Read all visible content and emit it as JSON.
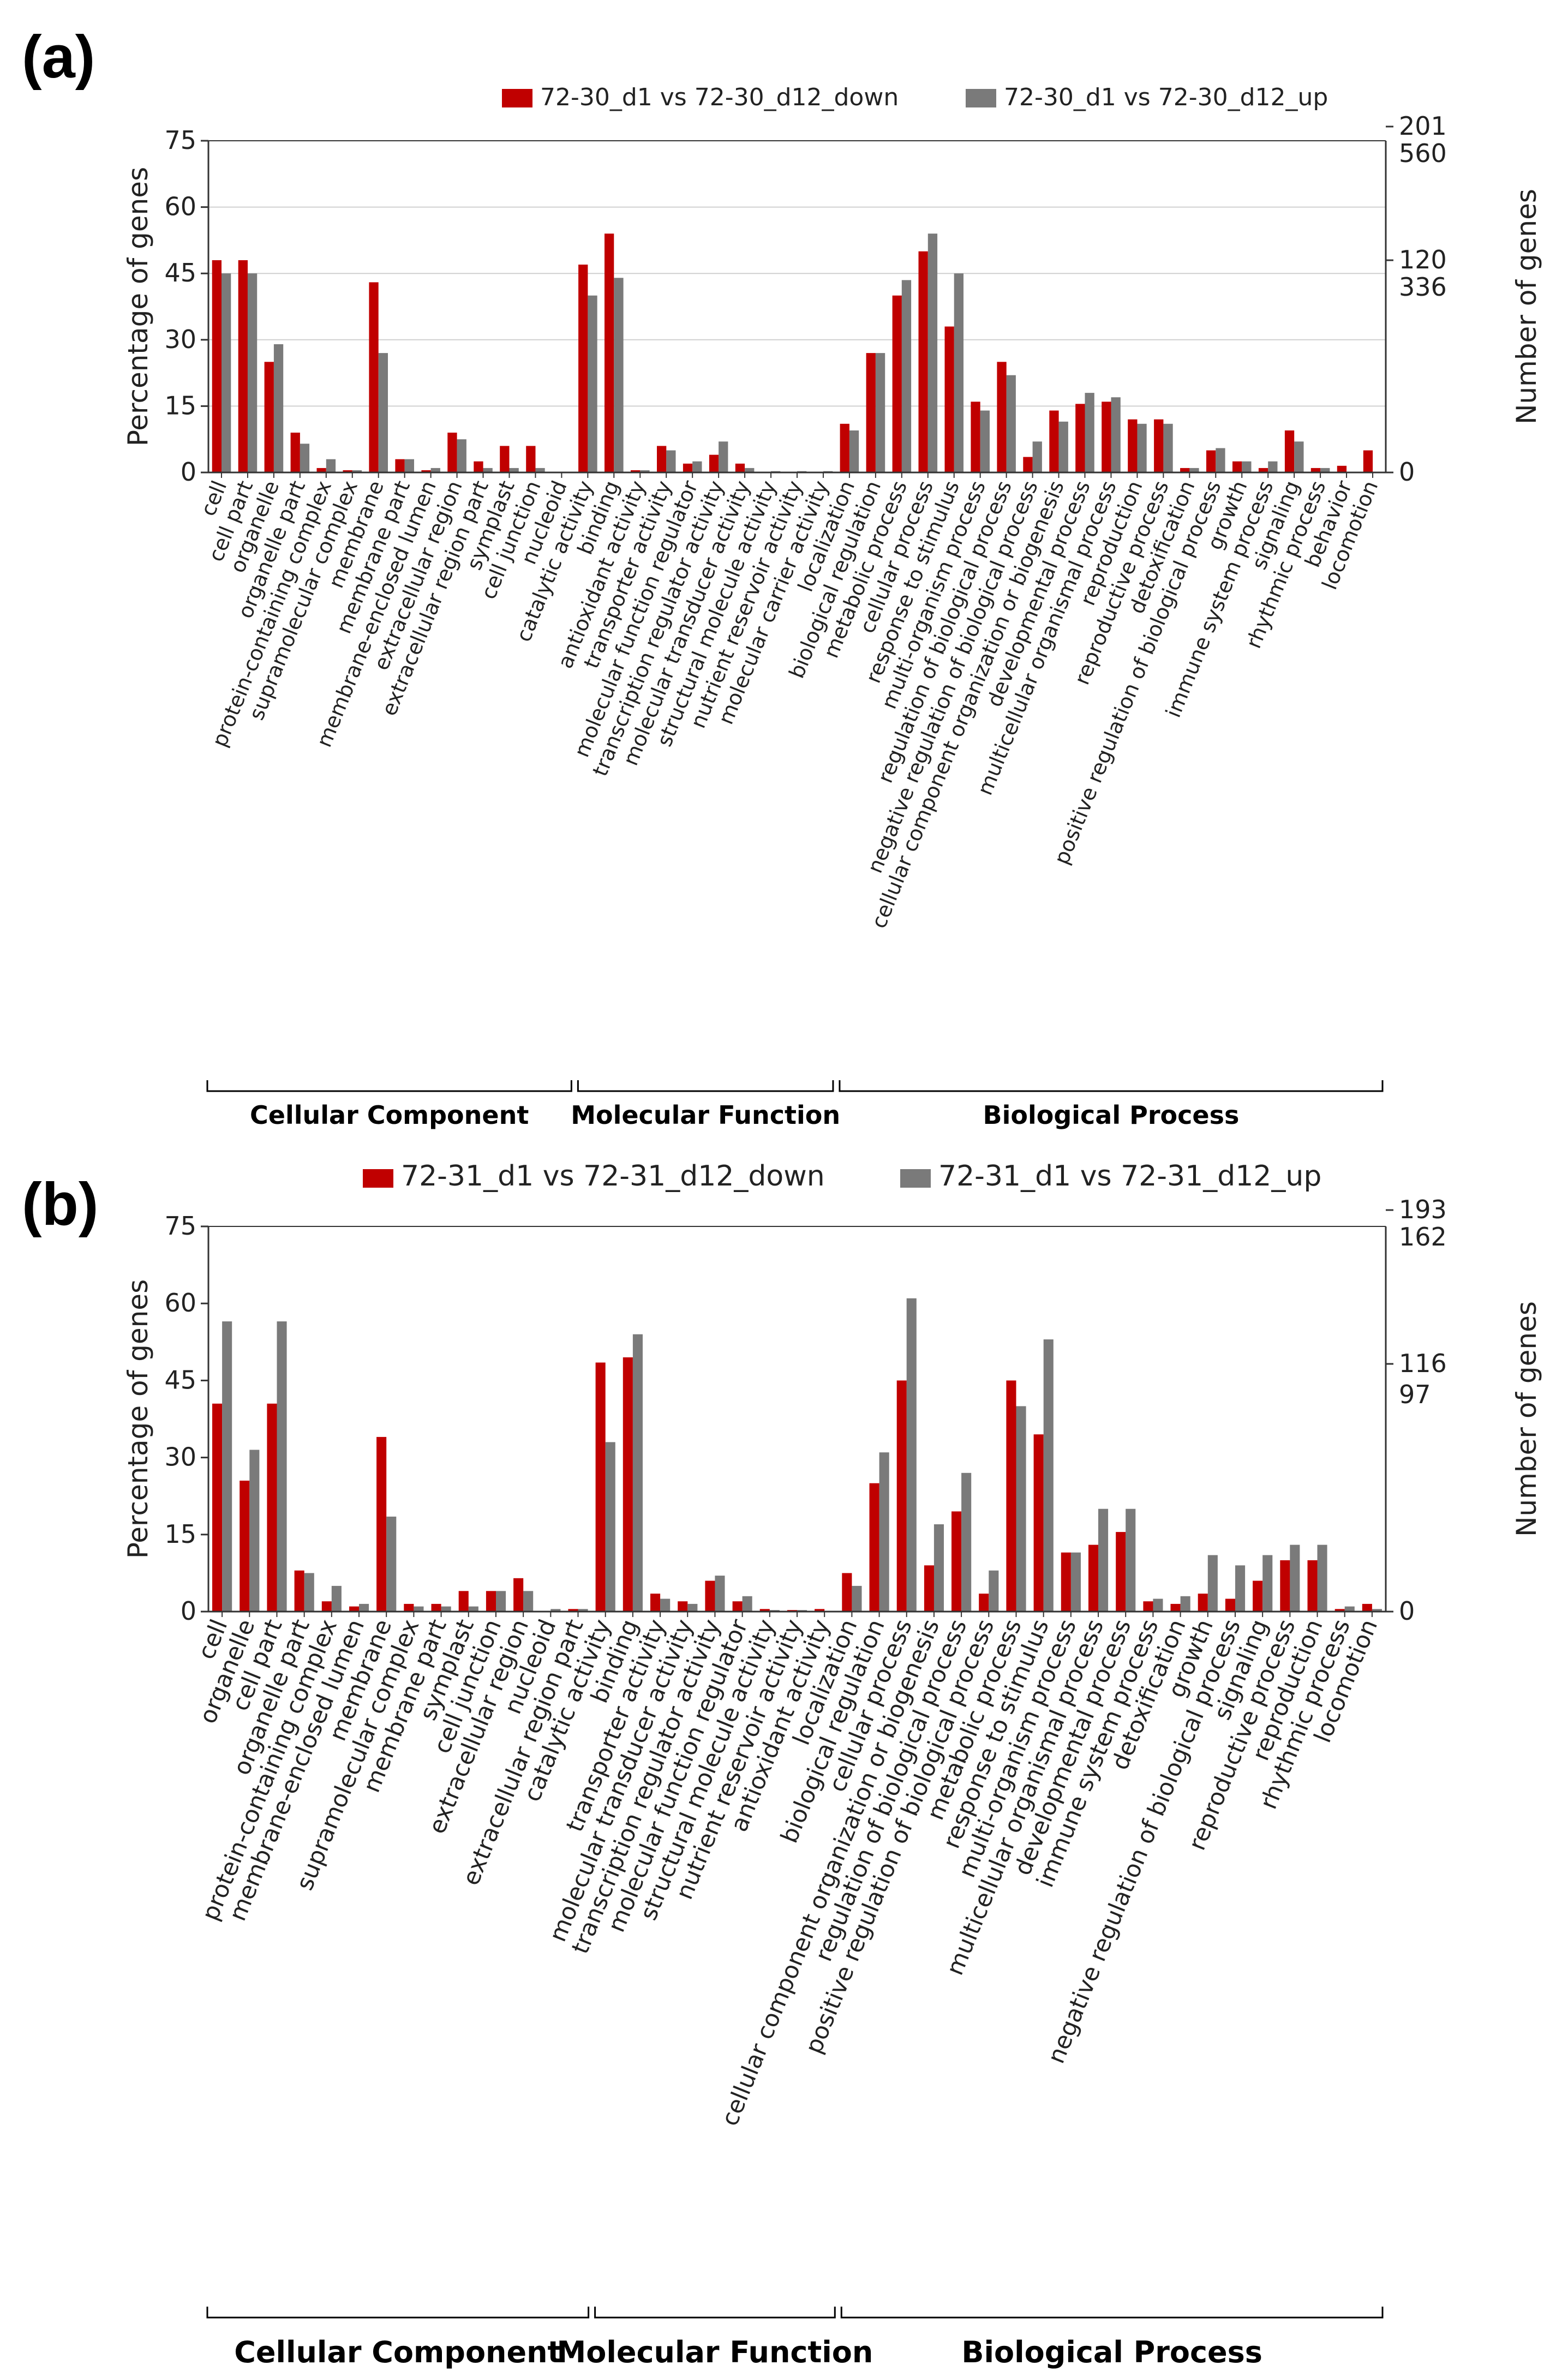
{
  "colors": {
    "down": "#c00000",
    "up": "#7a7a7a",
    "axis": "#333333",
    "grid": "#d0d0d0",
    "text": "#222222"
  },
  "chart_data": [
    {
      "panel": "(a)",
      "type": "bar",
      "ylabel": "Percentage of genes",
      "y2label": "Number of genes",
      "ylim": [
        0,
        75
      ],
      "yticks": [
        "75",
        "60",
        "45",
        "30",
        "15",
        "0"
      ],
      "right_ticks_down": [
        "201",
        "120",
        "0"
      ],
      "right_ticks_up": [
        "560",
        "336"
      ],
      "grid": true,
      "legend_position": "top",
      "series": [
        {
          "name": "72-30_d1 vs 72-30_d12_down",
          "color": "#c00000",
          "values": [
            48,
            48,
            25,
            9,
            1,
            0.5,
            43,
            3,
            0.5,
            9,
            2.5,
            6,
            6,
            0,
            47,
            54,
            0.5,
            6,
            2,
            4,
            2,
            0,
            0,
            0,
            11,
            27,
            40,
            50,
            33,
            16,
            25,
            3.5,
            14,
            15.5,
            16,
            12,
            12,
            1,
            5,
            2.5,
            1,
            9.5,
            1,
            1.5,
            5
          ]
        },
        {
          "name": "72-30_d1 vs 72-30_d12_up",
          "color": "#7a7a7a",
          "values": [
            45,
            45,
            29,
            6.5,
            3,
            0.5,
            27,
            3,
            1,
            7.5,
            1,
            1,
            1,
            0,
            40,
            44,
            0.5,
            5,
            2.5,
            7,
            1,
            0.3,
            0.3,
            0.3,
            9.5,
            27,
            43.5,
            54,
            45,
            14,
            22,
            7,
            11.5,
            18,
            17,
            11,
            11,
            1,
            5.5,
            2.5,
            2.5,
            7,
            1,
            0,
            0
          ]
        }
      ],
      "groups": [
        {
          "name": "Cellular Component",
          "range": [
            0,
            13
          ]
        },
        {
          "name": "Molecular Function",
          "range": [
            14,
            23
          ]
        },
        {
          "name": "Biological Process",
          "range": [
            24,
            44
          ]
        }
      ],
      "categories": [
        "cell",
        "cell part",
        "organelle",
        "organelle part",
        "protein-containing complex",
        "supramolecular complex",
        "membrane",
        "membrane part",
        "membrane-enclosed lumen",
        "extracellular region",
        "extracellular region part",
        "symplast",
        "cell junction",
        "nucleoid",
        "catalytic activity",
        "binding",
        "antioxidant activity",
        "transporter activity",
        "molecular function regulator",
        "transcription regulator activity",
        "molecular transducer activity",
        "structural molecule activity",
        "nutrient reservoir activity",
        "molecular carrier activity",
        "localization",
        "biological regulation",
        "metabolic process",
        "cellular process",
        "response to stimulus",
        "multi-organism process",
        "regulation of biological process",
        "negative regulation of biological process",
        "cellular component organization or biogenesis",
        "developmental process",
        "multicellular organismal process",
        "reproduction",
        "reproductive process",
        "detoxification",
        "positive regulation of biological process",
        "growth",
        "immune system process",
        "signaling",
        "rhythmic process",
        "behavior",
        "locomotion"
      ]
    },
    {
      "panel": "(b)",
      "type": "bar",
      "ylabel": "Percentage of genes",
      "y2label": "Number of genes",
      "ylim": [
        0,
        75
      ],
      "yticks": [
        "75",
        "60",
        "45",
        "30",
        "15",
        "0"
      ],
      "right_ticks_down": [
        "193",
        "116",
        "0"
      ],
      "right_ticks_up": [
        "162",
        "97"
      ],
      "grid": false,
      "legend_position": "top",
      "series": [
        {
          "name": "72-31_d1 vs 72-31_d12_down",
          "color": "#c00000",
          "values": [
            40.5,
            25.5,
            40.5,
            8,
            2,
            1,
            34,
            1.5,
            1.5,
            4,
            4,
            6.5,
            0,
            0.5,
            48.5,
            49.5,
            3.5,
            2,
            6,
            2,
            0.5,
            0.3,
            0.5,
            7.5,
            25,
            45,
            9,
            19.5,
            3.5,
            45,
            34.5,
            11.5,
            13,
            15.5,
            2,
            1.5,
            3.5,
            2.5,
            6,
            10,
            10,
            0.5,
            1.5
          ]
        },
        {
          "name": "72-31_d1 vs 72-31_d12_up",
          "color": "#7a7a7a",
          "values": [
            56.5,
            31.5,
            56.5,
            7.5,
            5,
            1.5,
            18.5,
            1,
            1,
            1,
            4,
            4,
            0.5,
            0.5,
            33,
            54,
            2.5,
            1.5,
            7,
            3,
            0.3,
            0.3,
            0,
            5,
            31,
            61,
            17,
            27,
            8,
            40,
            53,
            11.5,
            20,
            20,
            2.5,
            3,
            11,
            9,
            11,
            13,
            13,
            1,
            0.5
          ]
        }
      ],
      "groups": [
        {
          "name": "Cellular Component",
          "range": [
            0,
            13
          ]
        },
        {
          "name": "Molecular Function",
          "range": [
            14,
            22
          ]
        },
        {
          "name": "Biological Process",
          "range": [
            23,
            42
          ]
        }
      ],
      "categories": [
        "cell",
        "organelle",
        "cell part",
        "organelle part",
        "protein-containing complex",
        "membrane-enclosed lumen",
        "membrane",
        "supramolecular complex",
        "membrane part",
        "symplast",
        "cell junction",
        "extracellular region",
        "nucleoid",
        "extracellular region part",
        "catalytic activity",
        "binding",
        "transporter activity",
        "molecular transducer activity",
        "transcription regulator activity",
        "molecular function regulator",
        "structural molecule activity",
        "nutrient reservoir activity",
        "antioxidant activity",
        "localization",
        "biological regulation",
        "cellular process",
        "cellular component organization or biogenesis",
        "regulation of biological process",
        "positive regulation of biological process",
        "metabolic process",
        "response to stimulus",
        "multi-organism process",
        "multicellular organismal process",
        "developmental process",
        "immune system process",
        "detoxification",
        "growth",
        "negative regulation of biological process",
        "signaling",
        "reproductive process",
        "reproduction",
        "rhythmic process",
        "locomotion"
      ]
    }
  ]
}
